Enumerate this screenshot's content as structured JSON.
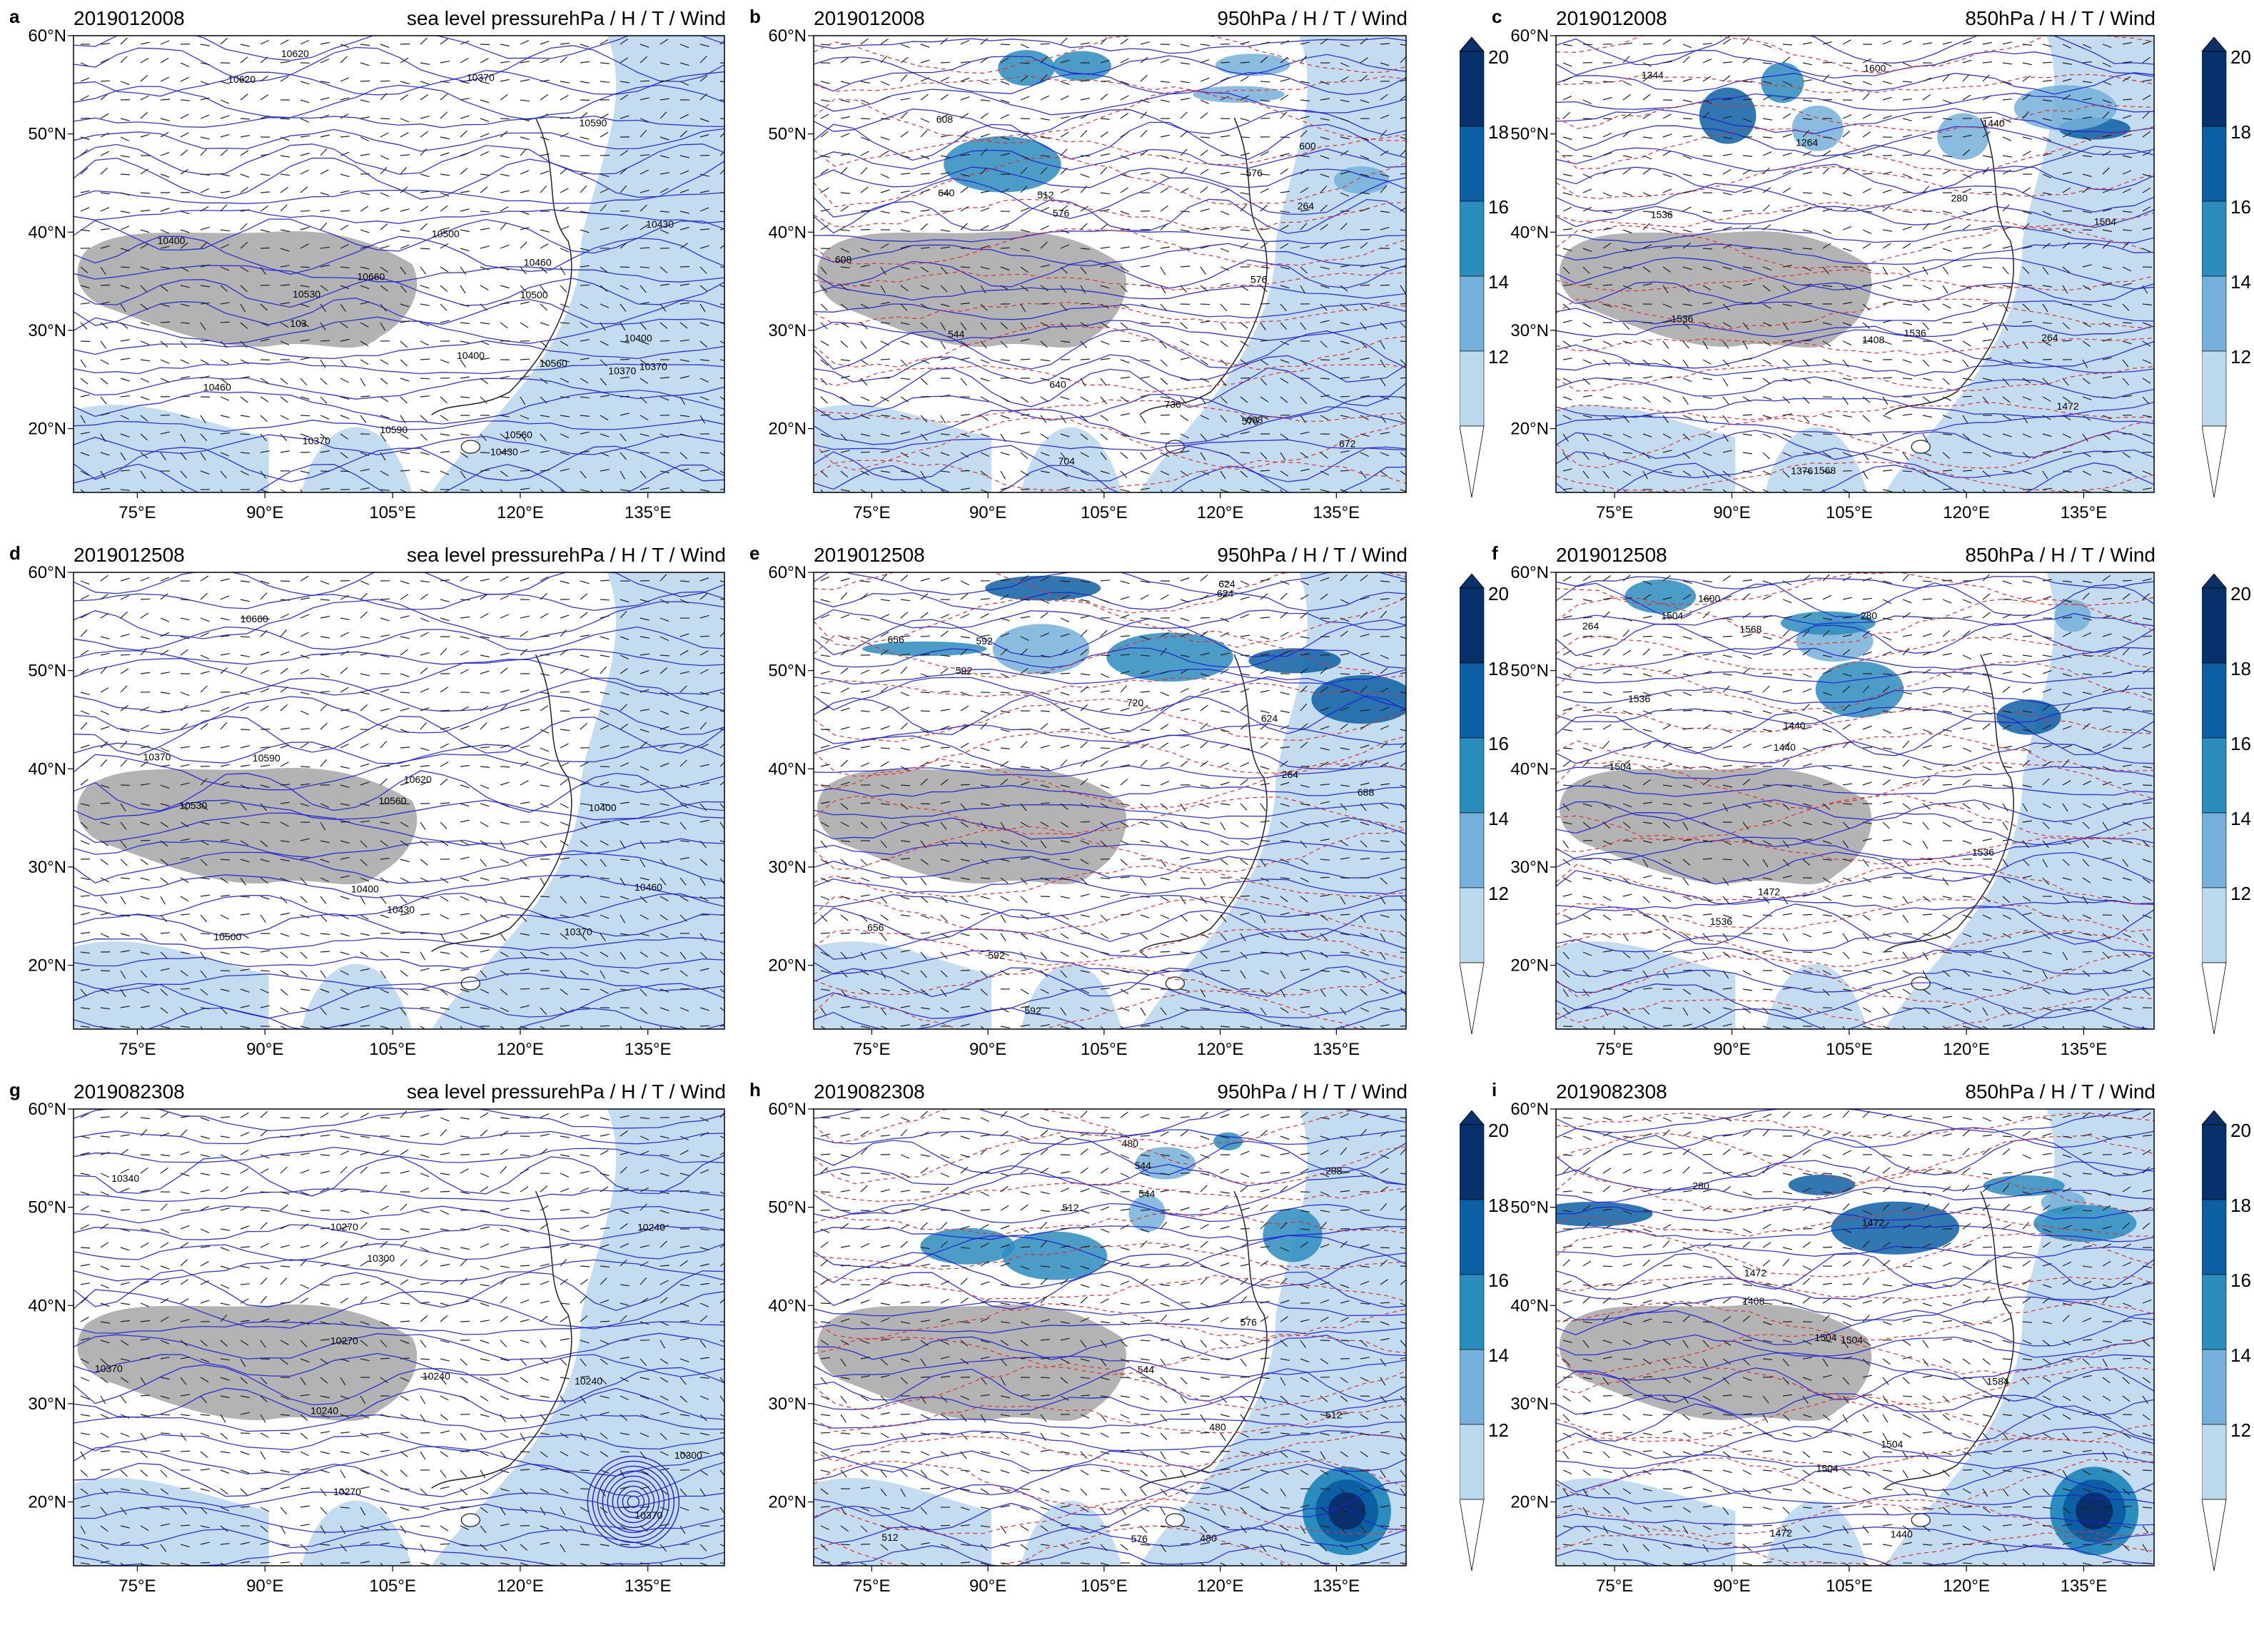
{
  "panels": [
    {
      "id": "a",
      "date": "2019012008",
      "title": "sea level pressurehPa / H / T / Wind",
      "labels": [
        "10400",
        "10370",
        "10400",
        "10430",
        "10500",
        "10460",
        "10620",
        "10590",
        "10560",
        "10530",
        "10660",
        "10500",
        "10620",
        "10590",
        "10560",
        "10400",
        "10370",
        "10460",
        "10430",
        "10370",
        "10370",
        "103"
      ]
    },
    {
      "id": "b",
      "date": "2019012008",
      "title": "950hPa / H / T / Wind",
      "labels": [
        "264",
        "576",
        "544",
        "608",
        "672",
        "640",
        "736",
        "704",
        "512",
        "576",
        "608",
        "640",
        "600",
        "576",
        "608",
        "576"
      ]
    },
    {
      "id": "c",
      "date": "2019012008",
      "title": "850hPa / H / T / Wind",
      "labels": [
        "1376",
        "1408",
        "1440",
        "1472",
        "1504",
        "1344",
        "1264",
        "1568",
        "1600",
        "1536",
        "264",
        "280",
        "1536",
        "1536"
      ]
    },
    {
      "id": "d",
      "date": "2019012508",
      "title": "sea level pressurehPa / H / T / Wind",
      "labels": [
        "10560",
        "10530",
        "10620",
        "10590",
        "10500",
        "10660",
        "10460",
        "10400",
        "10370",
        "10430",
        "10400",
        "10370"
      ]
    },
    {
      "id": "e",
      "date": "2019012508",
      "title": "950hPa / H / T / Wind",
      "labels": [
        "592",
        "624",
        "656",
        "688",
        "720",
        "264",
        "656",
        "624",
        "592",
        "592",
        "624",
        "592"
      ]
    },
    {
      "id": "f",
      "date": "2019012508",
      "title": "850hPa / H / T / Wind",
      "labels": [
        "1440",
        "1472",
        "1504",
        "1536",
        "1568",
        "1600",
        "264",
        "280",
        "1536",
        "1536",
        "1504",
        "1440"
      ]
    },
    {
      "id": "g",
      "date": "2019082308",
      "title": "sea level pressurehPa / H / T / Wind",
      "labels": [
        "10370",
        "10240",
        "10300",
        "10270",
        "10340",
        "10370",
        "10240",
        "10270",
        "10300",
        "10240",
        "10270",
        "10240"
      ]
    },
    {
      "id": "h",
      "date": "2019082308",
      "title": "950hPa / H / T / Wind",
      "labels": [
        "576",
        "288",
        "512",
        "480",
        "544",
        "576",
        "512",
        "544",
        "480",
        "512",
        "544",
        "480"
      ]
    },
    {
      "id": "i",
      "date": "2019082308",
      "title": "850hPa / H / T / Wind",
      "labels": [
        "1472",
        "1440",
        "1408",
        "280",
        "1504",
        "1472",
        "1504",
        "1504",
        "1472",
        "1504",
        "1584"
      ]
    }
  ],
  "axes": {
    "lat_labels": [
      "60°N",
      "50°N",
      "40°N",
      "30°N",
      "20°N"
    ],
    "lon_labels": [
      "75°E",
      "90°E",
      "105°E",
      "120°E",
      "135°E"
    ]
  },
  "colorbar": {
    "labels": [
      "20",
      "18",
      "16",
      "14",
      "12"
    ],
    "colors": [
      "#08306b",
      "#0d5fa3",
      "#2b8cbe",
      "#74b0d9",
      "#bcd9ee",
      "#ffffff"
    ]
  },
  "colors": {
    "contour_blue": "#1f1fd6",
    "contour_red": "#e03030",
    "plateau_gray": "#b3b3b3",
    "wind_fill_light": "#c3dcf0"
  }
}
